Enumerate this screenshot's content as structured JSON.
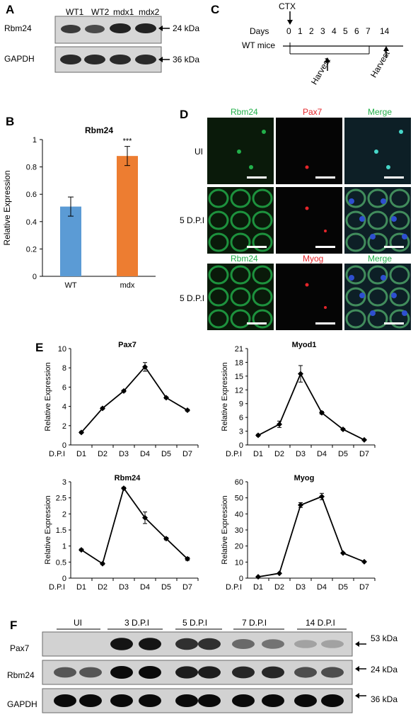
{
  "panels": {
    "A": "A",
    "B": "B",
    "C": "C",
    "D": "D",
    "E": "E",
    "F": "F"
  },
  "panel_a": {
    "lanes": [
      "WT1",
      "WT2",
      "mdx1",
      "mdx2"
    ],
    "rows": [
      {
        "label": "Rbm24",
        "kda": "24 kDa"
      },
      {
        "label": "GAPDH",
        "kda": "36 kDa"
      }
    ]
  },
  "panel_c": {
    "treatment": "CTX",
    "days_label": "Days",
    "mice_label": "WT mice",
    "days": [
      "0",
      "1",
      "2",
      "3",
      "4",
      "5",
      "6",
      "7",
      "14"
    ],
    "harvest": "Harvest"
  },
  "panel_d": {
    "row1": {
      "label": "UI",
      "stains": [
        "Rbm24",
        "Pax7",
        "Merge"
      ]
    },
    "row2": {
      "label": "5 D.P.I"
    },
    "row3": {
      "label": "5 D.P.I",
      "stains": [
        "Rbm24",
        "Myog",
        "Merge"
      ]
    },
    "colors": {
      "green": "#22b04a",
      "red": "#e5252a"
    }
  },
  "panel_f": {
    "groups": [
      "UI",
      "3 D.P.I",
      "5 D.P.I",
      "7 D.P.I",
      "14 D.P.I"
    ],
    "rows": [
      {
        "label": "Pax7",
        "kda": "53 kDa"
      },
      {
        "label": "Rbm24",
        "kda": "24 kDa"
      },
      {
        "label": "GAPDH",
        "kda": "36 kDa"
      }
    ]
  },
  "chart_data": [
    {
      "id": "B",
      "type": "bar",
      "title": "Rbm24",
      "ylabel": "Relative Expression",
      "categories": [
        "WT",
        "mdx"
      ],
      "values": [
        0.51,
        0.88
      ],
      "errors": [
        0.07,
        0.07
      ],
      "colors": [
        "#5b9bd5",
        "#ed7d31"
      ],
      "annotation": "***",
      "ylim": [
        0,
        1
      ],
      "yticks": [
        "0",
        "0.2",
        "0.4",
        "0.6",
        "0.8",
        "1"
      ]
    },
    {
      "id": "E1",
      "type": "line",
      "title": "Pax7",
      "ylabel": "Relative Expression",
      "xaxis_label": "D.P.I",
      "categories": [
        "D1",
        "D2",
        "D3",
        "D4",
        "D5",
        "D7"
      ],
      "values": [
        1.3,
        3.8,
        5.6,
        8.1,
        4.9,
        3.6
      ],
      "errors": [
        0.1,
        0.1,
        0.1,
        0.45,
        0.1,
        0.1
      ],
      "ylim": [
        0,
        10
      ],
      "yticks": [
        "0",
        "2",
        "4",
        "6",
        "8",
        "10"
      ]
    },
    {
      "id": "E2",
      "type": "line",
      "title": "Myod1",
      "ylabel": "Relative Expression",
      "xaxis_label": "D.P.I",
      "categories": [
        "D1",
        "D2",
        "D3",
        "D4",
        "D5",
        "D7"
      ],
      "values": [
        2.1,
        4.5,
        15.5,
        7.0,
        3.4,
        1.1
      ],
      "errors": [
        0.2,
        0.7,
        1.8,
        0.3,
        0.2,
        0.1
      ],
      "ylim": [
        0,
        21
      ],
      "yticks": [
        "0",
        "3",
        "6",
        "9",
        "12",
        "15",
        "18",
        "21"
      ]
    },
    {
      "id": "E3",
      "type": "line",
      "title": "Rbm24",
      "ylabel": "Relative Expression",
      "xaxis_label": "D.P.I",
      "categories": [
        "D1",
        "D2",
        "D3",
        "D4",
        "D5",
        "D7"
      ],
      "values": [
        0.88,
        0.45,
        2.8,
        1.88,
        1.23,
        0.6
      ],
      "errors": [
        0.03,
        0.03,
        0.03,
        0.18,
        0.04,
        0.05
      ],
      "ylim": [
        0,
        3
      ],
      "yticks": [
        "0",
        "0.5",
        "1",
        "1.5",
        "2",
        "2.5",
        "3"
      ]
    },
    {
      "id": "E4",
      "type": "line",
      "title": "Myog",
      "ylabel": "Relative Expression",
      "xaxis_label": "D.P.I",
      "categories": [
        "D1",
        "D2",
        "D3",
        "D4",
        "D5",
        "D7"
      ],
      "values": [
        0.8,
        3.0,
        45.5,
        50.8,
        15.6,
        10.2
      ],
      "errors": [
        0.2,
        0.3,
        1.5,
        2.0,
        0.4,
        0.3
      ],
      "ylim": [
        0,
        60
      ],
      "yticks": [
        "0",
        "10",
        "20",
        "30",
        "40",
        "50",
        "60"
      ]
    }
  ]
}
